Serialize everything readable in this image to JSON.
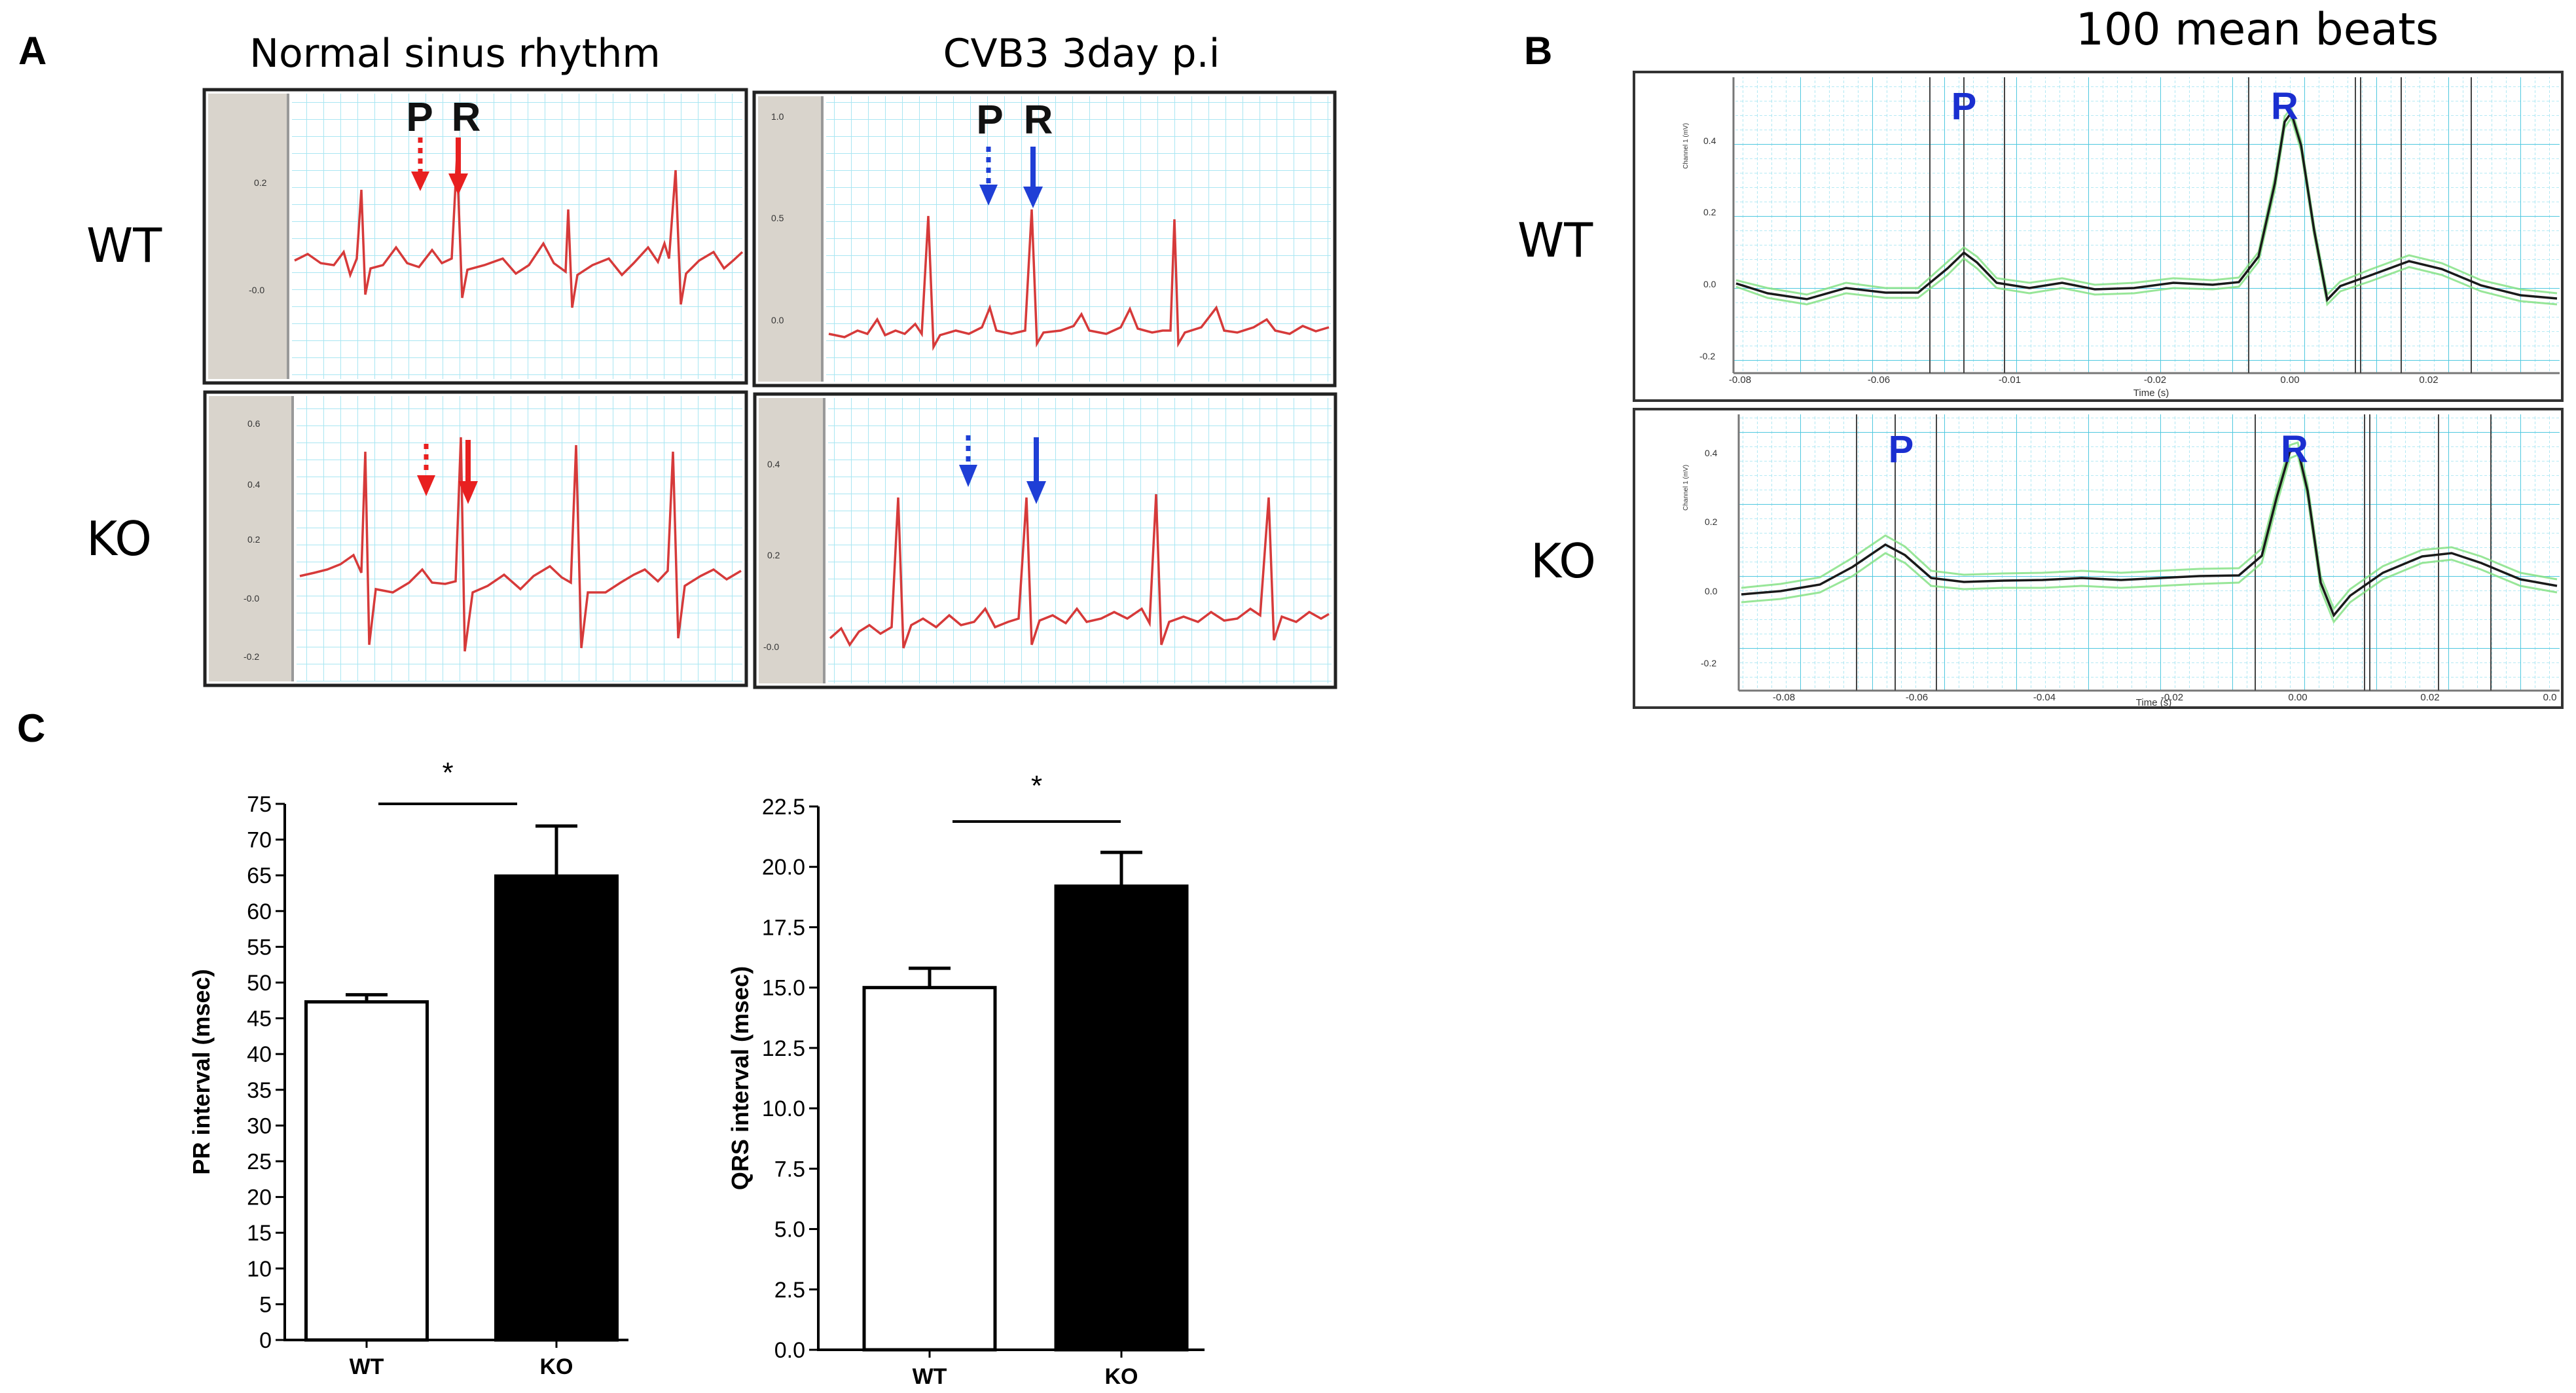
{
  "panel_a": {
    "letter": "A",
    "col_titles": [
      "Normal sinus rhythm",
      "CVB3 3day p.i"
    ],
    "row_labels": [
      "WT",
      "KO"
    ],
    "markers": {
      "p": "P",
      "r": "R"
    },
    "axes": [
      {
        "ticks": [
          "0.2",
          "-0.0"
        ]
      },
      {
        "ticks": [
          "1.0",
          "0.5",
          "0.0"
        ]
      },
      {
        "ticks": [
          "0.6",
          "0.4",
          "0.2",
          "-0.0",
          "-0.2"
        ]
      },
      {
        "ticks": [
          "0.4",
          "0.2",
          "-0.0"
        ]
      }
    ],
    "colors": {
      "trace": "#d63a3a",
      "normal_arrow": "#e82020",
      "cvb3_arrow": "#1f3fd6",
      "grid": "#a9e6f2"
    }
  },
  "panel_b": {
    "letter": "B",
    "title": "100 mean beats",
    "row_labels": [
      "WT",
      "KO"
    ],
    "markers": {
      "p": "P",
      "r": "R"
    },
    "x_axis_label": "Time (s)",
    "wt": {
      "y_ticks": [
        "0.4",
        "0.2",
        "0.0",
        "-0.2"
      ],
      "x_ticks": [
        "-0.08",
        "-0.06",
        "-0.01",
        "-0.02",
        "0.00",
        "0.02"
      ],
      "y_label": "Channel 1 (mV)"
    },
    "ko": {
      "y_ticks": [
        "0.4",
        "0.2",
        "0.0",
        "-0.2"
      ],
      "x_ticks": [
        "-0.08",
        "-0.06",
        "-0.04",
        "-0.02",
        "0.00",
        "0.02",
        "0.0"
      ],
      "y_label": "Channel 1 (mV)"
    }
  },
  "panel_c": {
    "letter": "C"
  },
  "chart_data": [
    {
      "type": "bar",
      "title": "",
      "categories": [
        "WT",
        "KO"
      ],
      "values": [
        47.3,
        64.9
      ],
      "errors": [
        1.0,
        7.0
      ],
      "colors": [
        "#ffffff",
        "#000000"
      ],
      "ylabel": "PR interval (msec)",
      "xlabel": "",
      "ylim": [
        0,
        75
      ],
      "yticks": [
        "0",
        "5",
        "10",
        "15",
        "20",
        "25",
        "30",
        "35",
        "40",
        "45",
        "50",
        "55",
        "60",
        "65",
        "70",
        "75"
      ],
      "significance": "*"
    },
    {
      "type": "bar",
      "title": "",
      "categories": [
        "WT",
        "KO"
      ],
      "values": [
        15.0,
        19.2
      ],
      "errors": [
        0.8,
        1.4
      ],
      "colors": [
        "#ffffff",
        "#000000"
      ],
      "ylabel": "QRS interval (msec)",
      "xlabel": "",
      "ylim": [
        0,
        22.5
      ],
      "yticks": [
        "0.0",
        "2.5",
        "5.0",
        "7.5",
        "10.0",
        "12.5",
        "15.0",
        "17.5",
        "20.0",
        "22.5"
      ],
      "significance": "*"
    }
  ]
}
